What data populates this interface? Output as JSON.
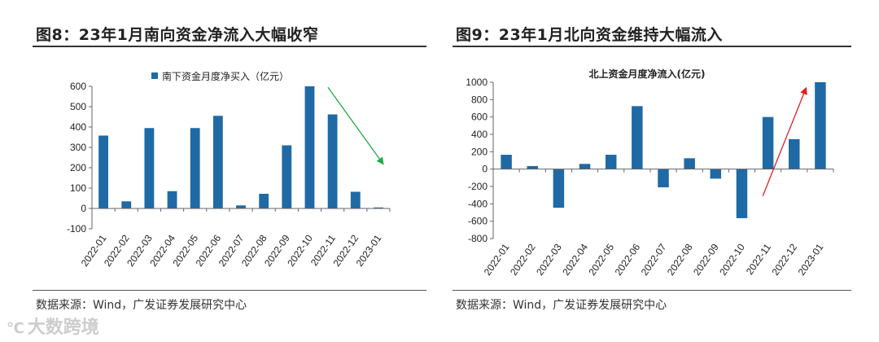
{
  "left": {
    "title": "图8：23年1月南向资金净流入大幅收窄",
    "source": "数据来源：Wind，广发证券发展研究中心"
  },
  "right": {
    "title": "图9：23年1月北向资金维持大幅流入",
    "source": "数据来源：Wind，广发证券发展研究中心"
  },
  "watermark": {
    "logo": "℃",
    "text": "大数跨境"
  },
  "colors": {
    "bar": "#1f6aa5",
    "left_arrow": "#22aa44",
    "right_arrow": "#e02020",
    "axis": "#666666"
  },
  "chart_data": [
    {
      "type": "bar",
      "title": "",
      "legend": "南下资金月度净买入（亿元）",
      "legend_position": "top",
      "categories": [
        "2022-01",
        "2022-02",
        "2022-03",
        "2022-04",
        "2022-05",
        "2022-06",
        "2022-07",
        "2022-08",
        "2022-09",
        "2022-10",
        "2022-11",
        "2022-12",
        "2023-01"
      ],
      "values": [
        358,
        35,
        395,
        85,
        395,
        455,
        15,
        72,
        310,
        600,
        462,
        82,
        5
      ],
      "ylim": [
        -100,
        600
      ],
      "yticks": [
        -100,
        0,
        100,
        200,
        300,
        400,
        500,
        600
      ],
      "annotation": "downward arrow from 2022-10 to 2023-01",
      "arrow_data": {
        "from": [
          9.8,
          595
        ],
        "to": [
          12.2,
          220
        ]
      }
    },
    {
      "type": "bar",
      "title": "北上资金月度净流入(亿元)",
      "legend": "",
      "categories": [
        "2022-01",
        "2022-02",
        "2022-03",
        "2022-04",
        "2022-05",
        "2022-06",
        "2022-07",
        "2022-08",
        "2022-09",
        "2022-10",
        "2022-11",
        "2022-12",
        "2023-01"
      ],
      "values": [
        165,
        35,
        -445,
        60,
        165,
        725,
        -210,
        125,
        -110,
        -565,
        600,
        345,
        1000
      ],
      "ylim": [
        -800,
        1000
      ],
      "yticks": [
        -800,
        -600,
        -400,
        -200,
        0,
        200,
        400,
        600,
        800,
        1000
      ],
      "annotation": "upward arrow from 2022-10 to 2023-01",
      "arrow_data": {
        "from": [
          9.8,
          -310
        ],
        "to": [
          11.45,
          930
        ]
      }
    }
  ]
}
